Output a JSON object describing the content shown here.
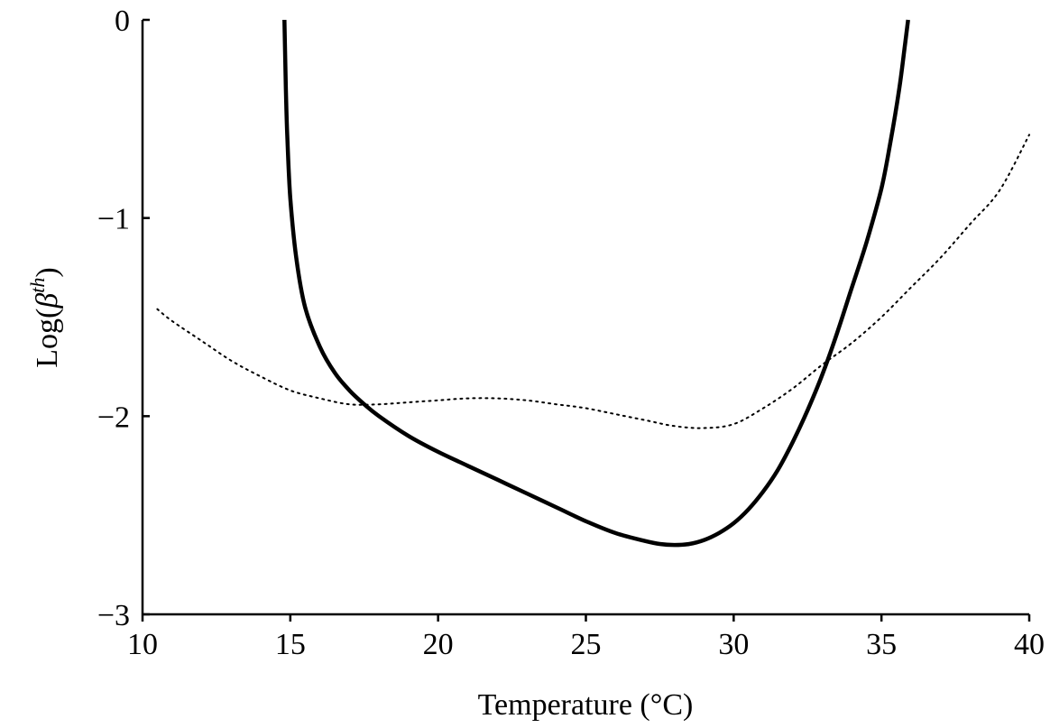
{
  "chart_data": {
    "type": "line",
    "title": "",
    "xlabel": "Temperature (°C)",
    "ylabel_prefix": "Log(",
    "ylabel_symbol": "β",
    "ylabel_superscript": "th",
    "ylabel_suffix": ")",
    "xlim": [
      10,
      40
    ],
    "ylim": [
      -3,
      0
    ],
    "xticks": [
      10,
      15,
      20,
      25,
      30,
      35,
      40
    ],
    "yticks": [
      0,
      -1,
      -2,
      -3
    ],
    "xtick_labels": [
      "10",
      "15",
      "20",
      "25",
      "30",
      "35",
      "40"
    ],
    "ytick_labels": [
      "0",
      "−1",
      "−2",
      "−3"
    ],
    "grid": false,
    "legend": "none",
    "series": [
      {
        "style": "solid",
        "color": "#000000",
        "x": [
          14.8,
          14.85,
          14.9,
          15.0,
          15.2,
          15.5,
          16.0,
          16.5,
          17.0,
          17.5,
          18.0,
          19.0,
          20.0,
          21.0,
          22.0,
          23.0,
          24.0,
          25.0,
          26.0,
          27.0,
          27.5,
          28.0,
          28.5,
          29.0,
          29.5,
          30.0,
          30.5,
          31.0,
          31.5,
          32.0,
          32.5,
          33.0,
          33.5,
          34.0,
          34.5,
          35.0,
          35.3,
          35.6,
          35.8,
          35.9
        ],
        "y": [
          0.0,
          -0.35,
          -0.6,
          -0.9,
          -1.2,
          -1.45,
          -1.65,
          -1.78,
          -1.87,
          -1.94,
          -2.0,
          -2.1,
          -2.18,
          -2.25,
          -2.32,
          -2.39,
          -2.46,
          -2.53,
          -2.59,
          -2.63,
          -2.645,
          -2.65,
          -2.645,
          -2.625,
          -2.59,
          -2.54,
          -2.47,
          -2.38,
          -2.27,
          -2.13,
          -1.97,
          -1.79,
          -1.58,
          -1.35,
          -1.12,
          -0.85,
          -0.62,
          -0.35,
          -0.12,
          0.0
        ]
      },
      {
        "style": "dotted",
        "color": "#000000",
        "x": [
          10.5,
          11.0,
          12.0,
          13.0,
          14.0,
          15.0,
          16.0,
          17.0,
          18.0,
          19.0,
          20.0,
          21.0,
          22.0,
          23.0,
          24.0,
          25.0,
          26.0,
          27.0,
          28.0,
          29.0,
          30.0,
          31.0,
          32.0,
          33.0,
          34.0,
          35.0,
          36.0,
          37.0,
          38.0,
          39.0,
          40.0
        ],
        "y": [
          -1.46,
          -1.52,
          -1.62,
          -1.72,
          -1.8,
          -1.87,
          -1.91,
          -1.94,
          -1.94,
          -1.93,
          -1.92,
          -1.91,
          -1.91,
          -1.92,
          -1.94,
          -1.96,
          -1.99,
          -2.02,
          -2.05,
          -2.06,
          -2.04,
          -1.96,
          -1.86,
          -1.74,
          -1.63,
          -1.5,
          -1.35,
          -1.2,
          -1.03,
          -0.86,
          -0.58
        ]
      }
    ]
  }
}
